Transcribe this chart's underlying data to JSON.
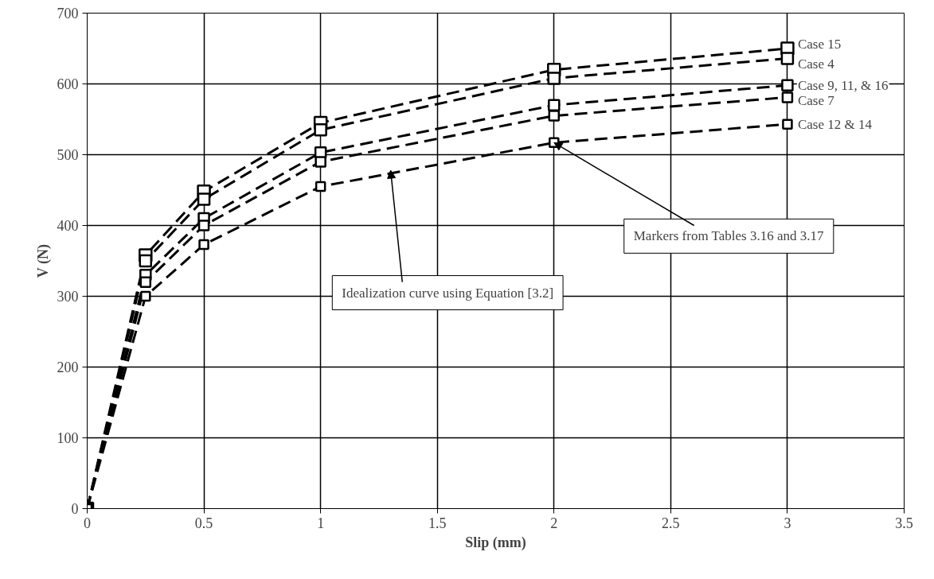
{
  "chart_data": {
    "type": "line",
    "xlabel": "Slip (mm)",
    "ylabel": "V (N)",
    "x": [
      0,
      0.25,
      0.5,
      1,
      2,
      3
    ],
    "series": [
      {
        "name": "Case 15",
        "color": "#000000",
        "values": [
          0,
          358,
          448,
          545,
          620,
          650
        ]
      },
      {
        "name": "Case 4",
        "color": "#000000",
        "values": [
          0,
          350,
          437,
          535,
          608,
          636
        ]
      },
      {
        "name": "Case 9, 11, & 16",
        "color": "#000000",
        "values": [
          0,
          330,
          410,
          503,
          570,
          598
        ]
      },
      {
        "name": "Case 7",
        "color": "#000000",
        "values": [
          0,
          320,
          400,
          490,
          555,
          581
        ]
      },
      {
        "name": "Case 12 & 14",
        "color": "#000000",
        "values": [
          0,
          300,
          373,
          455,
          517,
          543
        ]
      }
    ],
    "xlim": [
      0,
      3.5
    ],
    "xticks": [
      0,
      0.5,
      1,
      1.5,
      2,
      2.5,
      3,
      3.5
    ],
    "ylim": [
      0,
      700
    ],
    "yticks": [
      0,
      100,
      200,
      300,
      400,
      500,
      600,
      700
    ],
    "grid": true,
    "marker": "square",
    "line_style": "dashed",
    "annotations": [
      {
        "text": "Markers from Tables 3.16 and 3.17",
        "x": 2,
        "y": 517
      },
      {
        "text": "Idealization curve using Equation [3.2]",
        "x": 1.3,
        "y": 478
      }
    ]
  }
}
